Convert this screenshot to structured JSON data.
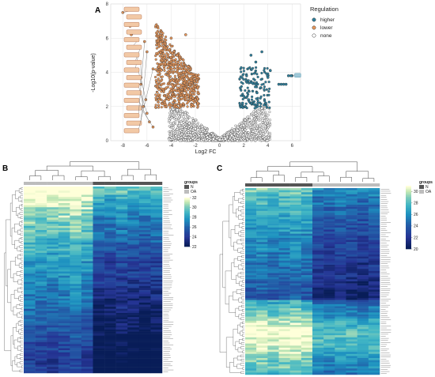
{
  "chart_data": [
    {
      "panel": "A",
      "type": "scatter",
      "xlabel": "Log2 FC",
      "ylabel": "-Log10(p-value)",
      "xlim": [
        -9,
        6.7
      ],
      "ylim": [
        0,
        8
      ],
      "x_ticks": [
        -8,
        -6,
        -4,
        -2,
        0,
        2,
        4,
        6
      ],
      "y_ticks": [
        0,
        2,
        4,
        6,
        8
      ],
      "grid": true,
      "legend": {
        "title": "Regulation",
        "position": "right",
        "entries": [
          {
            "label": "higher",
            "color": "#2e7f9c"
          },
          {
            "label": "lower",
            "color": "#e8975a"
          },
          {
            "label": "none",
            "color": "#ffffff"
          }
        ]
      },
      "series": [
        {
          "name": "higher",
          "color": "#2e7f9c",
          "points": [
            [
              6.0,
              3.8
            ],
            [
              5.9,
              3.8
            ],
            [
              5.7,
              3.8
            ],
            [
              5.5,
              3.3
            ],
            [
              5.3,
              3.3
            ],
            [
              5.1,
              3.3
            ],
            [
              4.9,
              3.3
            ],
            [
              4.2,
              4.1
            ],
            [
              4.0,
              3.7
            ],
            [
              3.5,
              5.2
            ],
            [
              3.0,
              4.6
            ],
            [
              2.6,
              5.0
            ],
            [
              2.2,
              3.5
            ],
            [
              2.0,
              2.6
            ],
            [
              2.4,
              2.4
            ],
            [
              3.1,
              2.8
            ],
            [
              3.4,
              3.1
            ],
            [
              1.9,
              2.2
            ]
          ]
        },
        {
          "name": "lower",
          "color": "#e8975a",
          "points": [
            [
              -8.0,
              7.5
            ],
            [
              -7.5,
              7.2
            ],
            [
              -7.4,
              6.7
            ],
            [
              -7.3,
              6.2
            ],
            [
              -7.2,
              5.5
            ],
            [
              -7.0,
              4.6
            ],
            [
              -7.0,
              4.1
            ],
            [
              -6.5,
              3.7
            ],
            [
              -6.5,
              3.3
            ],
            [
              -6.1,
              2.4
            ],
            [
              -6.3,
              2.0
            ],
            [
              -6.0,
              1.6
            ],
            [
              -5.8,
              1.1
            ],
            [
              -5.5,
              0.8
            ],
            [
              -6.2,
              5.8
            ],
            [
              -6.0,
              5.2
            ],
            [
              -5.5,
              4.2
            ],
            [
              -5.0,
              3.0
            ],
            [
              -4.5,
              4.5
            ],
            [
              -4.0,
              6.0
            ],
            [
              -3.5,
              5.0
            ],
            [
              -3.0,
              4.0
            ],
            [
              -2.6,
              3.0
            ],
            [
              -2.2,
              2.5
            ],
            [
              -1.8,
              2.2
            ],
            [
              -3.8,
              3.5
            ],
            [
              -4.2,
              2.4
            ],
            [
              -3.2,
              2.1
            ],
            [
              -2.8,
              6.2
            ]
          ]
        },
        {
          "name": "none",
          "color": "#ffffff",
          "points": [
            [
              -3.5,
              1.8
            ],
            [
              -3.0,
              1.4
            ],
            [
              -2.5,
              1.0
            ],
            [
              -2.0,
              0.7
            ],
            [
              -1.5,
              0.4
            ],
            [
              -1.0,
              0.2
            ],
            [
              -0.5,
              0.1
            ],
            [
              0.0,
              0.05
            ],
            [
              0.5,
              0.1
            ],
            [
              1.0,
              0.3
            ],
            [
              1.5,
              0.6
            ],
            [
              2.0,
              0.9
            ],
            [
              2.5,
              1.2
            ],
            [
              3.0,
              1.6
            ],
            [
              3.5,
              1.9
            ],
            [
              4.0,
              1.5
            ]
          ]
        }
      ],
      "annotations": [
        "",
        "",
        "",
        "",
        "",
        "",
        "",
        "",
        "",
        "",
        "",
        "",
        "",
        "",
        "",
        "",
        ""
      ]
    },
    {
      "panel": "B",
      "type": "heatmap",
      "color_scale": {
        "title": "",
        "min": 22,
        "max": 32,
        "ticks": [
          32,
          30,
          28,
          26,
          24,
          22
        ]
      },
      "groups_legend": {
        "title": "groups",
        "entries": [
          {
            "label": "N",
            "color": "#555555"
          },
          {
            "label": "OA",
            "color": "#bdbdbd"
          }
        ]
      },
      "n_columns": 12,
      "n_rows": 90,
      "column_groups": [
        "OA",
        "OA",
        "OA",
        "OA",
        "OA",
        "OA",
        "N",
        "N",
        "N",
        "N",
        "N",
        "N"
      ],
      "column_means": [
        29.0,
        28.6,
        28.3,
        28.8,
        29.2,
        28.4,
        24.6,
        24.2,
        24.8,
        24.4,
        24.0,
        24.5
      ],
      "row_profile": [
        31.5,
        31,
        30.5,
        30,
        29.8,
        29.5,
        29,
        28.8,
        28.5,
        28.5,
        28,
        28,
        27.8,
        27.5,
        27.5,
        27,
        27,
        26.8,
        26.5,
        26.5,
        26,
        26,
        26,
        25.8,
        25.5,
        25.5,
        25.2,
        25,
        25,
        25,
        24.8,
        24.5,
        24.5,
        24.2,
        24,
        24,
        24,
        23.8,
        23.5,
        23.5,
        23.2,
        23,
        23,
        23,
        22.8,
        22.5,
        22.5,
        22.5,
        22.2,
        22
      ],
      "row_labels": [],
      "legend_position": "right"
    },
    {
      "panel": "C",
      "type": "heatmap",
      "color_scale": {
        "title": "",
        "min": 20,
        "max": 31,
        "ticks": [
          30,
          28,
          26,
          24,
          22,
          20
        ]
      },
      "groups_legend": {
        "title": "groups",
        "entries": [
          {
            "label": "N",
            "color": "#555555"
          },
          {
            "label": "OA",
            "color": "#bdbdbd"
          }
        ]
      },
      "n_columns": 12,
      "n_rows": 90,
      "column_groups": [
        "N",
        "N",
        "N",
        "N",
        "N",
        "N",
        "OA",
        "OA",
        "OA",
        "OA",
        "OA",
        "OA"
      ],
      "column_means": [
        27.5,
        27.8,
        27.2,
        27.6,
        27.9,
        27.3,
        24.0,
        23.6,
        24.2,
        23.8,
        23.4,
        24.1
      ],
      "row_profile": [
        28,
        27.5,
        27,
        27,
        26.8,
        26.5,
        26.5,
        26,
        26,
        25.8,
        25.5,
        25.5,
        25.2,
        25,
        25,
        25,
        24.8,
        24.5,
        24.5,
        24.2,
        24,
        24,
        24,
        23.8,
        23.5,
        23.5,
        23.2,
        23,
        23,
        23,
        26.5,
        27,
        27.5,
        28,
        28.5,
        29,
        29.5,
        30,
        30.5,
        30.5,
        30,
        30,
        29.5,
        29,
        29,
        28.5,
        28,
        28,
        27.5,
        27
      ],
      "row_labels": [],
      "legend_position": "right"
    }
  ],
  "panels": {
    "A": {
      "letter": "A"
    },
    "B": {
      "letter": "B",
      "groups_title": "groups",
      "group_labels": [
        "N",
        "OA"
      ]
    },
    "C": {
      "letter": "C",
      "groups_title": "groups",
      "group_labels": [
        "N",
        "OA"
      ]
    }
  },
  "colors": {
    "higher": "#2e7f9c",
    "lower": "#e8975a",
    "heat_low": "#1a237e",
    "heat_mid": "#41b6c4",
    "heat_high": "#ffffcc",
    "group_N": "#555555",
    "group_OA": "#bdbdbd"
  }
}
